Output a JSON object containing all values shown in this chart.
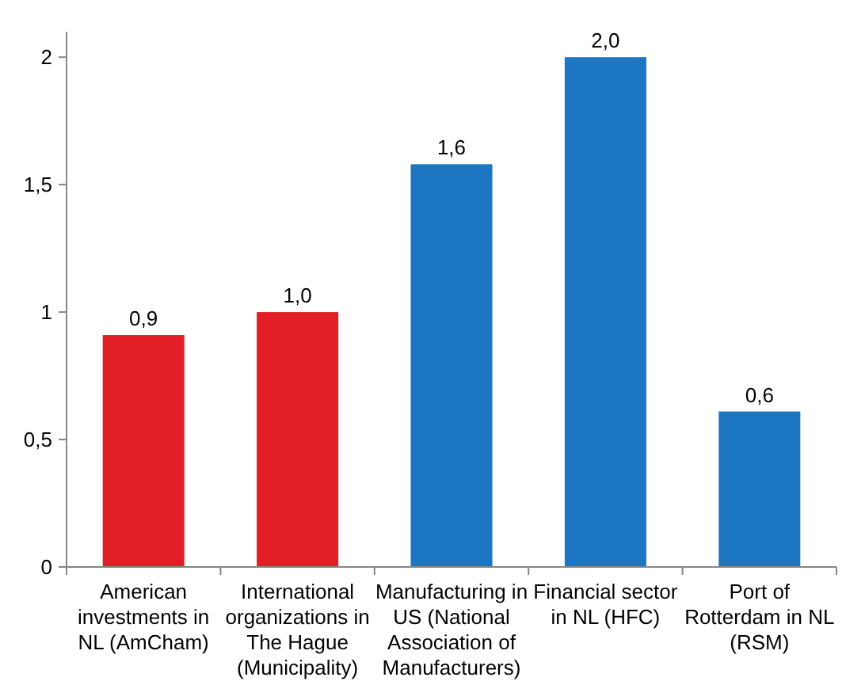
{
  "chart_data": {
    "type": "bar",
    "categories": [
      "American investments in NL (AmCham)",
      "International organizations in The Hague (Municipality)",
      "Manufacturing in US (National Association of Manufacturers)",
      "Financial sector in NL (HFC)",
      "Port of Rotterdam in NL (RSM)"
    ],
    "values": [
      0.91,
      1.0,
      1.58,
      2.0,
      0.61
    ],
    "colors": [
      "#e21f26",
      "#e21f26",
      "#1d76c2",
      "#1d76c2",
      "#1d76c2"
    ],
    "value_labels": [
      "0,9",
      "1,0",
      "1,6",
      "2,0",
      "0,6"
    ],
    "ylim": [
      0,
      2.1
    ],
    "yticks": [
      0,
      {
        "value": 0.5,
        "label": "0,5"
      },
      1,
      {
        "value": 1.5,
        "label": "1,5"
      },
      2
    ],
    "grid": false
  }
}
